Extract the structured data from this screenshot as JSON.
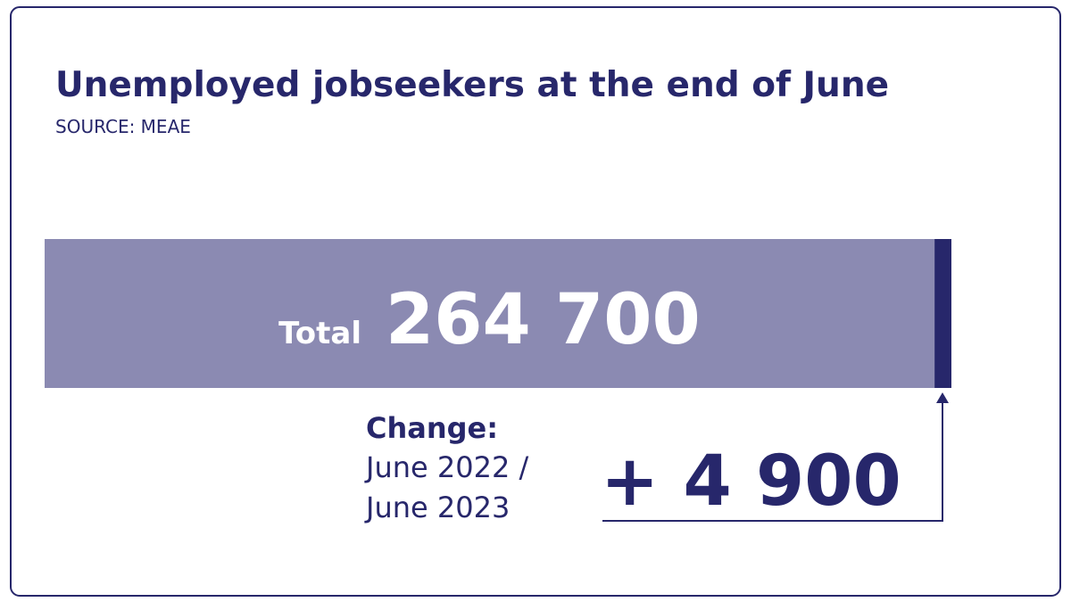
{
  "header": {
    "title": "Unemployed jobseekers at the end of June",
    "source": "SOURCE: MEAE"
  },
  "total": {
    "label": "Total",
    "value": 264700,
    "value_label": "264 700",
    "color": "#8b8ab2"
  },
  "change": {
    "label": "Change:",
    "period": [
      "June 2022 /",
      "June 2023"
    ],
    "value": 4900,
    "value_label": "+ 4 900",
    "color": "#27276b"
  }
}
